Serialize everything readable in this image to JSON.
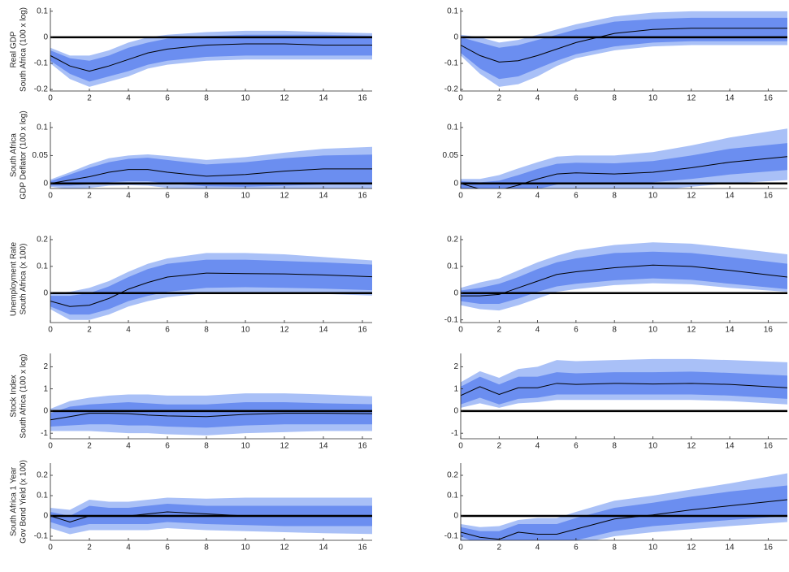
{
  "chart_data": [
    {
      "type": "band-line",
      "ylabel": [
        "Real GDP",
        "South Africa (100 x log)"
      ],
      "x": [
        0,
        1,
        2,
        3,
        4,
        5,
        6,
        8,
        10,
        12,
        14,
        17
      ],
      "xlim": [
        0,
        16.5
      ],
      "xticks": [
        0,
        2,
        4,
        6,
        8,
        10,
        12,
        14,
        16
      ],
      "ylim": [
        -0.206,
        0.112
      ],
      "yticks": [
        -0.2,
        -0.1,
        0,
        0.1
      ],
      "reference_line": 0,
      "line_color": "#000000",
      "median": [
        -0.07,
        -0.11,
        -0.13,
        -0.11,
        -0.085,
        -0.06,
        -0.045,
        -0.03,
        -0.025,
        -0.025,
        -0.03,
        -0.03
      ],
      "bands": [
        {
          "color": "#a9c0f7",
          "lower": [
            -0.1,
            -0.16,
            -0.19,
            -0.17,
            -0.15,
            -0.12,
            -0.105,
            -0.09,
            -0.085,
            -0.085,
            -0.085,
            -0.085
          ],
          "upper": [
            -0.04,
            -0.07,
            -0.07,
            -0.05,
            -0.02,
            0.0,
            0.01,
            0.02,
            0.025,
            0.025,
            0.02,
            0.015
          ]
        },
        {
          "color": "#6b8ef0",
          "lower": [
            -0.09,
            -0.14,
            -0.17,
            -0.15,
            -0.13,
            -0.105,
            -0.09,
            -0.075,
            -0.07,
            -0.07,
            -0.07,
            -0.07
          ],
          "upper": [
            -0.05,
            -0.08,
            -0.09,
            -0.07,
            -0.04,
            -0.02,
            -0.005,
            0.005,
            0.01,
            0.01,
            0.01,
            0.005
          ]
        }
      ]
    },
    {
      "type": "band-line",
      "x": [
        0,
        1,
        2,
        3,
        4,
        5,
        6,
        8,
        10,
        12,
        14,
        17
      ],
      "xlim": [
        0,
        17
      ],
      "xticks": [
        0,
        2,
        4,
        6,
        8,
        10,
        12,
        14,
        16
      ],
      "ylim": [
        -0.206,
        0.112
      ],
      "yticks": [
        -0.2,
        -0.1,
        0,
        0.1
      ],
      "reference_line": 0,
      "line_color": "#000000",
      "median": [
        -0.03,
        -0.07,
        -0.095,
        -0.09,
        -0.07,
        -0.045,
        -0.02,
        0.015,
        0.03,
        0.035,
        0.035,
        0.035
      ],
      "bands": [
        {
          "color": "#a9c0f7",
          "lower": [
            -0.07,
            -0.14,
            -0.19,
            -0.18,
            -0.15,
            -0.11,
            -0.08,
            -0.05,
            -0.035,
            -0.03,
            -0.03,
            -0.03
          ],
          "upper": [
            0.01,
            0.0,
            -0.02,
            -0.01,
            0.01,
            0.03,
            0.05,
            0.08,
            0.095,
            0.1,
            0.1,
            0.1
          ]
        },
        {
          "color": "#6b8ef0",
          "lower": [
            -0.06,
            -0.12,
            -0.16,
            -0.15,
            -0.12,
            -0.09,
            -0.065,
            -0.035,
            -0.02,
            -0.015,
            -0.015,
            -0.015
          ],
          "upper": [
            0.0,
            -0.02,
            -0.04,
            -0.03,
            -0.01,
            0.01,
            0.03,
            0.06,
            0.07,
            0.075,
            0.075,
            0.075
          ]
        }
      ]
    },
    {
      "type": "band-line",
      "ylabel": [
        "South Africa",
        "GDP Deflator (100 x log)"
      ],
      "x": [
        0,
        1,
        2,
        3,
        4,
        5,
        6,
        8,
        10,
        12,
        14,
        17
      ],
      "xlim": [
        0,
        16.5
      ],
      "xticks": [
        0,
        2,
        4,
        6,
        8,
        10,
        12,
        14,
        16
      ],
      "ylim": [
        -0.009,
        0.11
      ],
      "yticks": [
        0,
        0.05,
        0.1
      ],
      "reference_line": 0,
      "line_color": "#000000",
      "median": [
        0,
        0.006,
        0.012,
        0.02,
        0.025,
        0.025,
        0.02,
        0.013,
        0.016,
        0.022,
        0.026,
        0.026
      ],
      "bands": [
        {
          "color": "#a9c0f7",
          "lower": [
            -0.006,
            -0.01,
            -0.008,
            -0.004,
            -0.003,
            -0.004,
            -0.008,
            -0.012,
            -0.013,
            -0.012,
            -0.012,
            -0.013
          ],
          "upper": [
            0.007,
            0.02,
            0.034,
            0.045,
            0.05,
            0.052,
            0.049,
            0.042,
            0.047,
            0.055,
            0.062,
            0.066
          ]
        },
        {
          "color": "#6b8ef0",
          "lower": [
            -0.004,
            -0.004,
            -0.002,
            0.002,
            0.004,
            0.004,
            0.0,
            -0.005,
            -0.006,
            -0.004,
            -0.002,
            -0.002
          ],
          "upper": [
            0.004,
            0.016,
            0.028,
            0.038,
            0.044,
            0.046,
            0.042,
            0.034,
            0.038,
            0.045,
            0.05,
            0.052
          ]
        }
      ]
    },
    {
      "type": "band-line",
      "x": [
        0,
        1,
        2,
        3,
        4,
        5,
        6,
        8,
        10,
        12,
        14,
        17
      ],
      "xlim": [
        0,
        17
      ],
      "xticks": [
        0,
        2,
        4,
        6,
        8,
        10,
        12,
        14,
        16
      ],
      "ylim": [
        -0.009,
        0.11
      ],
      "yticks": [
        0,
        0.05,
        0.1
      ],
      "reference_line": 0,
      "line_color": "#000000",
      "median": [
        0,
        -0.01,
        -0.012,
        -0.003,
        0.008,
        0.017,
        0.019,
        0.017,
        0.02,
        0.028,
        0.038,
        0.048
      ],
      "bands": [
        {
          "color": "#a9c0f7",
          "lower": [
            -0.012,
            -0.03,
            -0.038,
            -0.032,
            -0.022,
            -0.014,
            -0.012,
            -0.014,
            -0.012,
            -0.006,
            0.0,
            0.006
          ],
          "upper": [
            0.008,
            0.008,
            0.015,
            0.027,
            0.038,
            0.048,
            0.05,
            0.05,
            0.056,
            0.068,
            0.082,
            0.098
          ]
        },
        {
          "color": "#6b8ef0",
          "lower": [
            -0.008,
            -0.022,
            -0.028,
            -0.02,
            -0.01,
            -0.002,
            0.0,
            -0.002,
            0.002,
            0.008,
            0.016,
            0.024
          ],
          "upper": [
            0.004,
            0.002,
            0.005,
            0.015,
            0.026,
            0.035,
            0.037,
            0.036,
            0.04,
            0.05,
            0.062,
            0.072
          ]
        }
      ]
    },
    {
      "type": "band-line",
      "ylabel": [
        "Unemployment Rate",
        "South Africa  (x 100)"
      ],
      "x": [
        0,
        1,
        2,
        3,
        4,
        5,
        6,
        8,
        10,
        12,
        14,
        17
      ],
      "xlim": [
        0,
        16.5
      ],
      "xticks": [
        0,
        2,
        4,
        6,
        8,
        10,
        12,
        14,
        16
      ],
      "ylim": [
        -0.11,
        0.215
      ],
      "yticks": [
        0,
        0.1,
        0.2
      ],
      "reference_line": 0,
      "line_color": "#000000",
      "median": [
        -0.03,
        -0.05,
        -0.045,
        -0.02,
        0.015,
        0.04,
        0.06,
        0.075,
        0.073,
        0.072,
        0.068,
        0.06
      ],
      "bands": [
        {
          "color": "#a9c0f7",
          "lower": [
            -0.06,
            -0.1,
            -0.1,
            -0.08,
            -0.05,
            -0.03,
            -0.015,
            0.0,
            0.002,
            0.0,
            -0.003,
            -0.01
          ],
          "upper": [
            0.0,
            0.005,
            0.02,
            0.045,
            0.08,
            0.11,
            0.13,
            0.15,
            0.15,
            0.145,
            0.135,
            0.12
          ]
        },
        {
          "color": "#6b8ef0",
          "lower": [
            -0.05,
            -0.08,
            -0.08,
            -0.06,
            -0.03,
            -0.01,
            0.005,
            0.02,
            0.022,
            0.02,
            0.017,
            0.01
          ],
          "upper": [
            -0.01,
            -0.01,
            0.0,
            0.025,
            0.06,
            0.09,
            0.11,
            0.125,
            0.125,
            0.12,
            0.115,
            0.105
          ]
        }
      ]
    },
    {
      "type": "band-line",
      "x": [
        0,
        1,
        2,
        3,
        4,
        5,
        6,
        8,
        10,
        12,
        14,
        17
      ],
      "xlim": [
        0,
        17
      ],
      "xticks": [
        0,
        2,
        4,
        6,
        8,
        10,
        12,
        14,
        16
      ],
      "ylim": [
        -0.11,
        0.215
      ],
      "yticks": [
        -0.1,
        0,
        0.1,
        0.2
      ],
      "reference_line": 0,
      "line_color": "#000000",
      "median": [
        -0.01,
        -0.01,
        -0.005,
        0.02,
        0.045,
        0.07,
        0.08,
        0.095,
        0.105,
        0.1,
        0.085,
        0.06
      ],
      "bands": [
        {
          "color": "#a9c0f7",
          "lower": [
            -0.045,
            -0.06,
            -0.065,
            -0.045,
            -0.02,
            0.005,
            0.015,
            0.03,
            0.037,
            0.033,
            0.02,
            0.005
          ],
          "upper": [
            0.02,
            0.04,
            0.055,
            0.085,
            0.115,
            0.14,
            0.16,
            0.18,
            0.19,
            0.185,
            0.17,
            0.145
          ]
        },
        {
          "color": "#6b8ef0",
          "lower": [
            -0.03,
            -0.04,
            -0.04,
            -0.02,
            0.005,
            0.025,
            0.035,
            0.048,
            0.055,
            0.05,
            0.035,
            0.015
          ],
          "upper": [
            0.01,
            0.02,
            0.035,
            0.06,
            0.09,
            0.115,
            0.13,
            0.15,
            0.155,
            0.15,
            0.135,
            0.11
          ]
        }
      ]
    },
    {
      "type": "band-line",
      "ylabel": [
        "Stock Index",
        "South Africa (100 x log)"
      ],
      "x": [
        0,
        1,
        2,
        3,
        4,
        5,
        6,
        8,
        10,
        12,
        14,
        17
      ],
      "xlim": [
        0,
        16.5
      ],
      "xticks": [
        0,
        2,
        4,
        6,
        8,
        10,
        12,
        14,
        16
      ],
      "ylim": [
        -1.25,
        2.6
      ],
      "yticks": [
        -1,
        0,
        1,
        2
      ],
      "reference_line": 0,
      "line_color": "#000000",
      "median": [
        -0.4,
        -0.25,
        -0.1,
        -0.1,
        -0.12,
        -0.18,
        -0.22,
        -0.25,
        -0.15,
        -0.1,
        -0.1,
        -0.12
      ],
      "bands": [
        {
          "color": "#a9c0f7",
          "lower": [
            -0.9,
            -0.9,
            -0.9,
            -0.95,
            -1.0,
            -1.0,
            -1.05,
            -1.1,
            -1.0,
            -0.95,
            -0.9,
            -0.9
          ],
          "upper": [
            0.1,
            0.45,
            0.6,
            0.7,
            0.75,
            0.75,
            0.7,
            0.7,
            0.8,
            0.8,
            0.75,
            0.65
          ]
        },
        {
          "color": "#6b8ef0",
          "lower": [
            -0.7,
            -0.65,
            -0.6,
            -0.6,
            -0.65,
            -0.65,
            -0.7,
            -0.75,
            -0.65,
            -0.6,
            -0.6,
            -0.6
          ],
          "upper": [
            -0.1,
            0.2,
            0.3,
            0.35,
            0.4,
            0.35,
            0.3,
            0.3,
            0.4,
            0.4,
            0.35,
            0.3
          ]
        }
      ]
    },
    {
      "type": "band-line",
      "x": [
        0,
        1,
        2,
        3,
        4,
        5,
        6,
        8,
        10,
        12,
        14,
        17
      ],
      "xlim": [
        0,
        17
      ],
      "xticks": [
        0,
        2,
        4,
        6,
        8,
        10,
        12,
        14,
        16
      ],
      "ylim": [
        -1.25,
        2.6
      ],
      "yticks": [
        -1,
        0,
        1,
        2
      ],
      "reference_line": 0,
      "line_color": "#000000",
      "median": [
        0.7,
        1.1,
        0.75,
        1.05,
        1.05,
        1.25,
        1.2,
        1.25,
        1.22,
        1.25,
        1.2,
        1.05
      ],
      "bands": [
        {
          "color": "#a9c0f7",
          "lower": [
            0.15,
            0.35,
            0.15,
            0.35,
            0.4,
            0.5,
            0.5,
            0.5,
            0.5,
            0.5,
            0.45,
            0.3
          ],
          "upper": [
            1.3,
            1.8,
            1.5,
            1.9,
            2.0,
            2.3,
            2.25,
            2.3,
            2.35,
            2.35,
            2.3,
            2.2
          ]
        },
        {
          "color": "#6b8ef0",
          "lower": [
            0.3,
            0.6,
            0.3,
            0.55,
            0.6,
            0.75,
            0.75,
            0.75,
            0.75,
            0.75,
            0.7,
            0.55
          ],
          "upper": [
            1.1,
            1.55,
            1.2,
            1.55,
            1.55,
            1.75,
            1.7,
            1.75,
            1.75,
            1.78,
            1.72,
            1.6
          ]
        }
      ]
    },
    {
      "type": "band-line",
      "ylabel": [
        "South Africa 1 Year",
        "Gov Bond Yield (x 100)"
      ],
      "x": [
        0,
        1,
        2,
        3,
        4,
        5,
        6,
        8,
        10,
        12,
        14,
        17
      ],
      "xlim": [
        0,
        16.5
      ],
      "xticks": [
        0,
        2,
        4,
        6,
        8,
        10,
        12,
        14,
        16
      ],
      "ylim": [
        -0.12,
        0.26
      ],
      "yticks": [
        -0.1,
        0,
        0.1,
        0.2
      ],
      "reference_line": 0,
      "line_color": "#000000",
      "median": [
        0.0,
        -0.03,
        0.0,
        0.0,
        0.0,
        0.01,
        0.02,
        0.01,
        0.0,
        0.0,
        0.0,
        0.0
      ],
      "bands": [
        {
          "color": "#a9c0f7",
          "lower": [
            -0.06,
            -0.09,
            -0.07,
            -0.07,
            -0.07,
            -0.07,
            -0.06,
            -0.07,
            -0.075,
            -0.08,
            -0.085,
            -0.09
          ],
          "upper": [
            0.04,
            0.03,
            0.08,
            0.07,
            0.07,
            0.08,
            0.09,
            0.085,
            0.09,
            0.09,
            0.09,
            0.09
          ]
        },
        {
          "color": "#6b8ef0",
          "lower": [
            -0.03,
            -0.06,
            -0.04,
            -0.04,
            -0.04,
            -0.04,
            -0.03,
            -0.04,
            -0.045,
            -0.05,
            -0.05,
            -0.05
          ],
          "upper": [
            0.02,
            0.0,
            0.05,
            0.04,
            0.04,
            0.05,
            0.06,
            0.05,
            0.05,
            0.05,
            0.05,
            0.05
          ]
        }
      ]
    },
    {
      "type": "band-line",
      "x": [
        0,
        1,
        2,
        3,
        4,
        5,
        6,
        8,
        10,
        12,
        14,
        17
      ],
      "xlim": [
        0,
        17
      ],
      "xticks": [
        0,
        2,
        4,
        6,
        8,
        10,
        12,
        14,
        16
      ],
      "ylim": [
        -0.12,
        0.26
      ],
      "yticks": [
        -0.1,
        0,
        0.1,
        0.2
      ],
      "reference_line": 0,
      "line_color": "#000000",
      "median": [
        -0.08,
        -0.105,
        -0.115,
        -0.08,
        -0.09,
        -0.09,
        -0.065,
        -0.015,
        0.005,
        0.03,
        0.05,
        0.08
      ],
      "bands": [
        {
          "color": "#a9c0f7",
          "lower": [
            -0.12,
            -0.16,
            -0.18,
            -0.15,
            -0.16,
            -0.16,
            -0.14,
            -0.1,
            -0.08,
            -0.065,
            -0.05,
            -0.03
          ],
          "upper": [
            -0.04,
            -0.055,
            -0.05,
            -0.02,
            -0.01,
            -0.01,
            0.02,
            0.075,
            0.1,
            0.13,
            0.16,
            0.21
          ]
        },
        {
          "color": "#6b8ef0",
          "lower": [
            -0.1,
            -0.14,
            -0.16,
            -0.13,
            -0.14,
            -0.14,
            -0.12,
            -0.075,
            -0.05,
            -0.035,
            -0.02,
            0.0
          ],
          "upper": [
            -0.055,
            -0.075,
            -0.075,
            -0.04,
            -0.04,
            -0.04,
            -0.01,
            0.04,
            0.065,
            0.095,
            0.12,
            0.15
          ]
        }
      ]
    }
  ]
}
